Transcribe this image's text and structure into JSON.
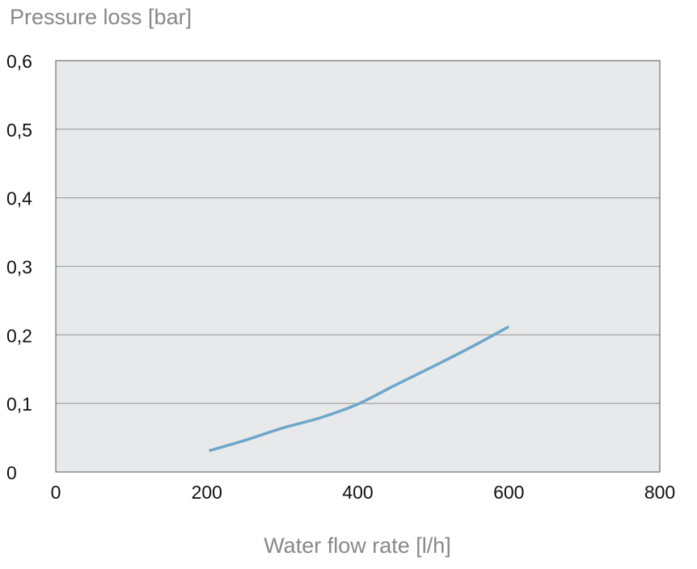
{
  "chart_data": {
    "type": "line",
    "title": "",
    "ylabel": "Pressure loss [bar]",
    "xlabel": "Water flow rate [l/h]",
    "xlim": [
      0,
      800
    ],
    "ylim": [
      0,
      0.6
    ],
    "x_ticks": [
      0,
      200,
      400,
      600,
      800
    ],
    "x_tick_labels": [
      "0",
      "200",
      "400",
      "600",
      "800"
    ],
    "y_ticks": [
      0,
      0.1,
      0.2,
      0.3,
      0.4,
      0.5,
      0.6
    ],
    "y_tick_labels": [
      "0",
      "0,1",
      "0,2",
      "0,3",
      "0,4",
      "0,5",
      "0,6"
    ],
    "grid": "horizontal",
    "legend": "none",
    "series": [
      {
        "name": "Pressure loss",
        "color": "#6fa6cb",
        "x": [
          203,
          250,
          300,
          350,
          400,
          450,
          500,
          550,
          600
        ],
        "y": [
          0.031,
          0.046,
          0.064,
          0.079,
          0.099,
          0.127,
          0.154,
          0.182,
          0.212
        ]
      }
    ],
    "colors": {
      "plot_background": "#e8e9ea",
      "grid": "#a8a8a8",
      "frame": "#555555"
    }
  }
}
